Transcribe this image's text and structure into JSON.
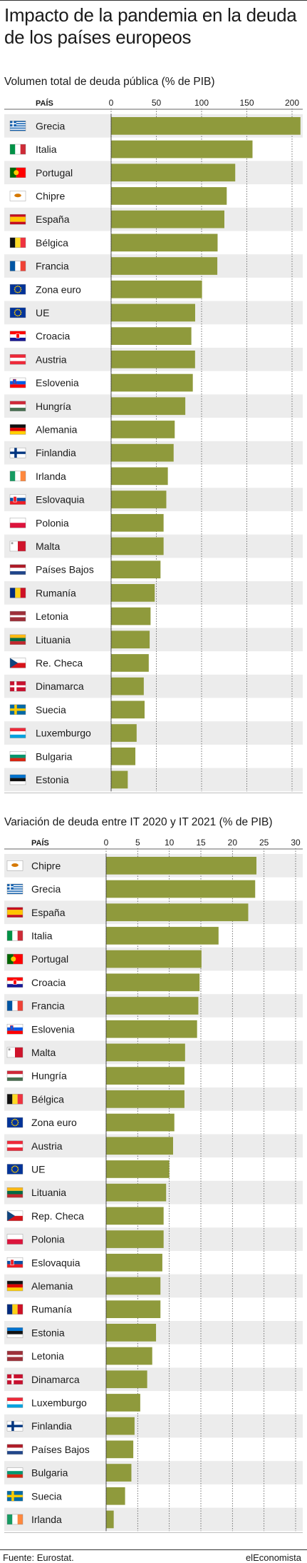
{
  "title": "Impacto de la pandemia en la deuda de los países europeos",
  "footer": {
    "source": "Fuente: Eurostat.",
    "brand": "elEconomista"
  },
  "colors": {
    "bar": "#8f9a3c",
    "stripe": "#ececec",
    "grid": "#555555"
  },
  "chart_data": [
    {
      "type": "bar",
      "title": "Volumen total de deuda pública (% de PIB)",
      "column_header": "PAÍS",
      "xlim": [
        0,
        200
      ],
      "ticks": [
        0,
        50,
        100,
        150,
        200
      ],
      "categories": [
        "Grecia",
        "Italia",
        "Portugal",
        "Chipre",
        "España",
        "Bélgica",
        "Francia",
        "Zona euro",
        "UE",
        "Croacia",
        "Austria",
        "Eslovenia",
        "Hungría",
        "Alemania",
        "Finlandia",
        "Irlanda",
        "Eslovaquia",
        "Polonia",
        "Malta",
        "Países Bajos",
        "Rumanía",
        "Letonia",
        "Lituania",
        "Re. Checa",
        "Dinamarca",
        "Suecia",
        "Luxemburgo",
        "Bulgaria",
        "Estonia"
      ],
      "flags": [
        "gr",
        "it",
        "pt",
        "cy",
        "es",
        "be",
        "fr",
        "eu",
        "eu",
        "hr",
        "at",
        "si",
        "hu",
        "de",
        "fi",
        "ie",
        "sk",
        "pl",
        "mt",
        "nl",
        "ro",
        "lv",
        "lt",
        "cz",
        "dk",
        "se",
        "lu",
        "bg",
        "ee"
      ],
      "values": [
        209.3,
        156.3,
        137.2,
        127.8,
        125.2,
        117.7,
        117.4,
        100.5,
        92.9,
        88.7,
        92.8,
        90.3,
        82.0,
        70.3,
        69.1,
        62.7,
        61.0,
        58.0,
        58.0,
        54.6,
        48.2,
        43.6,
        42.6,
        41.6,
        36.1,
        37.0,
        28.2,
        26.8,
        18.4
      ]
    },
    {
      "type": "bar",
      "title": "Variación de deuda entre IT 2020 y IT 2021 (% de PIB)",
      "column_header": "PAÍS",
      "xlim": [
        0,
        30
      ],
      "ticks": [
        0,
        5,
        10,
        15,
        20,
        25,
        30
      ],
      "categories": [
        "Chipre",
        "Grecia",
        "España",
        "Italia",
        "Portugal",
        "Croacia",
        "Francia",
        "Eslovenia",
        "Malta",
        "Hungría",
        "Bélgica",
        "Zona euro",
        "Austria",
        "UE",
        "Lituania",
        "Rep. Checa",
        "Polonia",
        "Eslovaquia",
        "Alemania",
        "Rumanía",
        "Estonia",
        "Letonia",
        "Dinamarca",
        "Luxemburgo",
        "Finlandia",
        "Países Bajos",
        "Bulgaria",
        "Suecia",
        "Irlanda"
      ],
      "flags": [
        "cy",
        "gr",
        "es",
        "it",
        "pt",
        "hr",
        "fr",
        "si",
        "mt",
        "hu",
        "be",
        "eu",
        "at",
        "eu",
        "lt",
        "cz",
        "pl",
        "sk",
        "de",
        "ro",
        "ee",
        "lv",
        "dk",
        "lu",
        "fi",
        "nl",
        "bg",
        "se",
        "ie"
      ],
      "values": [
        23.8,
        23.6,
        22.5,
        17.8,
        15.1,
        14.8,
        14.6,
        14.4,
        12.5,
        12.4,
        12.4,
        10.8,
        10.6,
        10.0,
        9.5,
        9.1,
        9.1,
        8.9,
        8.6,
        8.6,
        7.9,
        7.3,
        6.5,
        5.4,
        4.5,
        4.3,
        4.0,
        3.0,
        1.2
      ]
    }
  ]
}
